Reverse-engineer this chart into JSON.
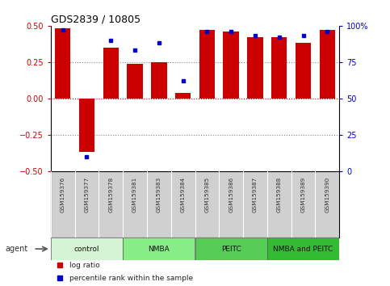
{
  "title": "GDS2839 / 10805",
  "samples": [
    "GSM159376",
    "GSM159377",
    "GSM159378",
    "GSM159381",
    "GSM159383",
    "GSM159384",
    "GSM159385",
    "GSM159386",
    "GSM159387",
    "GSM159388",
    "GSM159389",
    "GSM159390"
  ],
  "log_ratio": [
    0.48,
    -0.37,
    0.35,
    0.24,
    0.25,
    0.04,
    0.47,
    0.46,
    0.42,
    0.42,
    0.38,
    0.47
  ],
  "percentile_rank": [
    97,
    10,
    90,
    83,
    88,
    62,
    96,
    96,
    93,
    92,
    93,
    96
  ],
  "bar_color": "#cc0000",
  "dot_color": "#0000cc",
  "ylim_left": [
    -0.5,
    0.5
  ],
  "ylim_right": [
    0,
    100
  ],
  "yticks_left": [
    -0.5,
    -0.25,
    0,
    0.25,
    0.5
  ],
  "yticks_right": [
    0,
    25,
    50,
    75,
    100
  ],
  "hlines": [
    -0.25,
    0,
    0.25
  ],
  "groups": [
    {
      "label": "control",
      "start": 0,
      "end": 3,
      "color": "#d4f4d4"
    },
    {
      "label": "NMBA",
      "start": 3,
      "end": 6,
      "color": "#88ee88"
    },
    {
      "label": "PEITC",
      "start": 6,
      "end": 9,
      "color": "#55cc55"
    },
    {
      "label": "NMBA and PEITC",
      "start": 9,
      "end": 12,
      "color": "#33bb33"
    }
  ],
  "agent_label": "agent",
  "legend_items": [
    {
      "label": "log ratio",
      "color": "#cc0000"
    },
    {
      "label": "percentile rank within the sample",
      "color": "#0000cc"
    }
  ],
  "background_color": "#ffffff",
  "tick_label_color_left": "#cc0000",
  "tick_label_color_right": "#0000cc",
  "sample_box_color": "#d0d0d0",
  "title_color": "#000000",
  "hline0_color": "#cc0000",
  "hline_other_color": "#888888"
}
